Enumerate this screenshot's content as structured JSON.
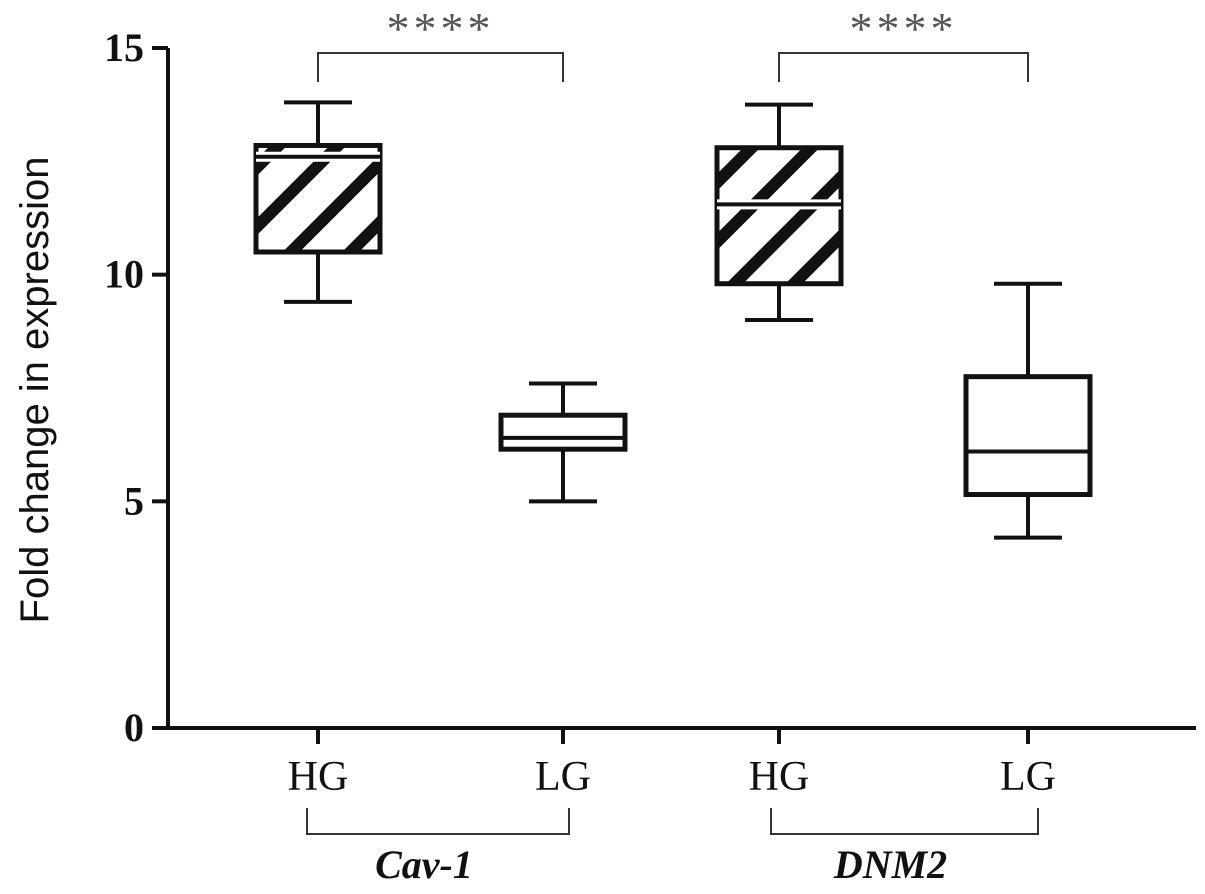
{
  "chart_data": {
    "type": "box",
    "ylabel": "Fold change in expression",
    "ylim": [
      0,
      15
    ],
    "yticks": [
      "0",
      "5",
      "10",
      "15"
    ],
    "legend": "none",
    "grid": false,
    "groups": [
      {
        "label": "Cav-1",
        "significance": "****",
        "boxes": [
          {
            "category": "HG",
            "pattern": "hatched",
            "min": 9.4,
            "q1": 10.5,
            "median": 12.6,
            "q3": 12.85,
            "max": 13.8
          },
          {
            "category": "LG",
            "pattern": "plain",
            "min": 5.0,
            "q1": 6.15,
            "median": 6.4,
            "q3": 6.9,
            "max": 7.6
          }
        ]
      },
      {
        "label": "DNM2",
        "significance": "****",
        "boxes": [
          {
            "category": "HG",
            "pattern": "hatched",
            "min": 9.0,
            "q1": 9.8,
            "median": 11.55,
            "q3": 12.8,
            "max": 13.75
          },
          {
            "category": "LG",
            "pattern": "plain",
            "min": 4.2,
            "q1": 5.15,
            "median": 6.1,
            "q3": 7.75,
            "max": 9.8
          }
        ]
      }
    ]
  }
}
